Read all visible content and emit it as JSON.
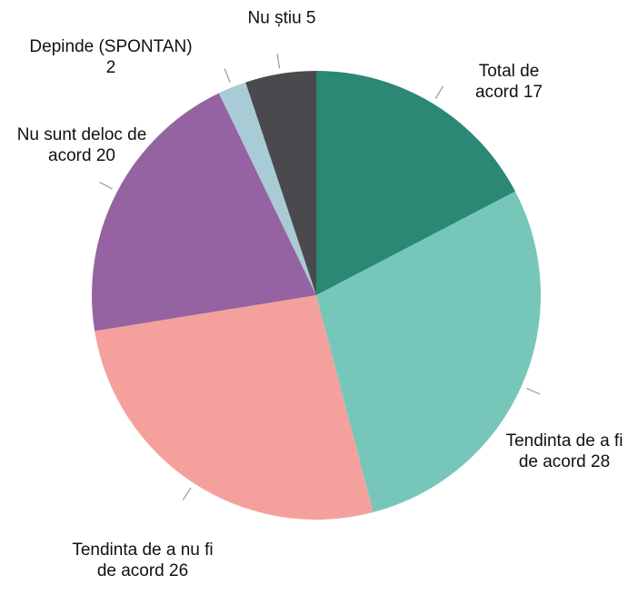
{
  "chart_data": {
    "type": "pie",
    "categories": [
      "Total de acord",
      "Tendinta de a fi de acord",
      "Tendinta de a nu fi de acord",
      "Nu sunt deloc de acord",
      "Depinde (SPONTAN)",
      "Nu știu"
    ],
    "values": [
      17,
      28,
      26,
      20,
      2,
      5
    ],
    "colors": [
      "#2a8874",
      "#76c7b9",
      "#f4a09c",
      "#9563a1",
      "#a9cbd6",
      "#4a494e"
    ]
  }
}
